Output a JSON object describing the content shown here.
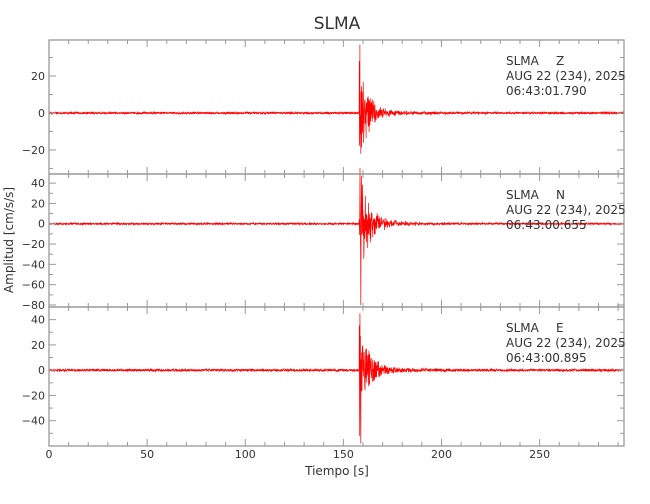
{
  "chart_data": {
    "type": "line",
    "title": "SLMA",
    "xlabel": "Tiempo [s]",
    "ylabel": "Amplitud [cm/s/s]",
    "xlim": [
      0,
      293
    ],
    "xticks": [
      0,
      50,
      100,
      150,
      200,
      250
    ],
    "grid": false,
    "line_color": "#ff0000",
    "axis_color": "#999999",
    "panels": [
      {
        "station": "SLMA",
        "component": "Z",
        "date": "AUG 22 (234), 2025",
        "time": "06:43:01.790",
        "ylim": [
          -33,
          39.5
        ],
        "yticks": [
          -20,
          0,
          20
        ],
        "onset_s": 158,
        "peak_pos": 37,
        "peak_neg": -22,
        "noise": 0.5
      },
      {
        "station": "SLMA",
        "component": "N",
        "date": "AUG 22 (234), 2025",
        "time": "06:43:00.655",
        "ylim": [
          -82,
          49
        ],
        "yticks": [
          -80,
          -60,
          -40,
          -20,
          0,
          20,
          40
        ],
        "onset_s": 158,
        "peak_pos": 35,
        "peak_neg": -80,
        "noise": 0.8
      },
      {
        "station": "SLMA",
        "component": "E",
        "date": "AUG 22 (234), 2025",
        "time": "06:43:00.895",
        "ylim": [
          -60,
          50
        ],
        "yticks": [
          -40,
          -20,
          0,
          20,
          40
        ],
        "onset_s": 158,
        "peak_pos": 45,
        "peak_neg": -58,
        "noise": 0.9
      }
    ]
  }
}
